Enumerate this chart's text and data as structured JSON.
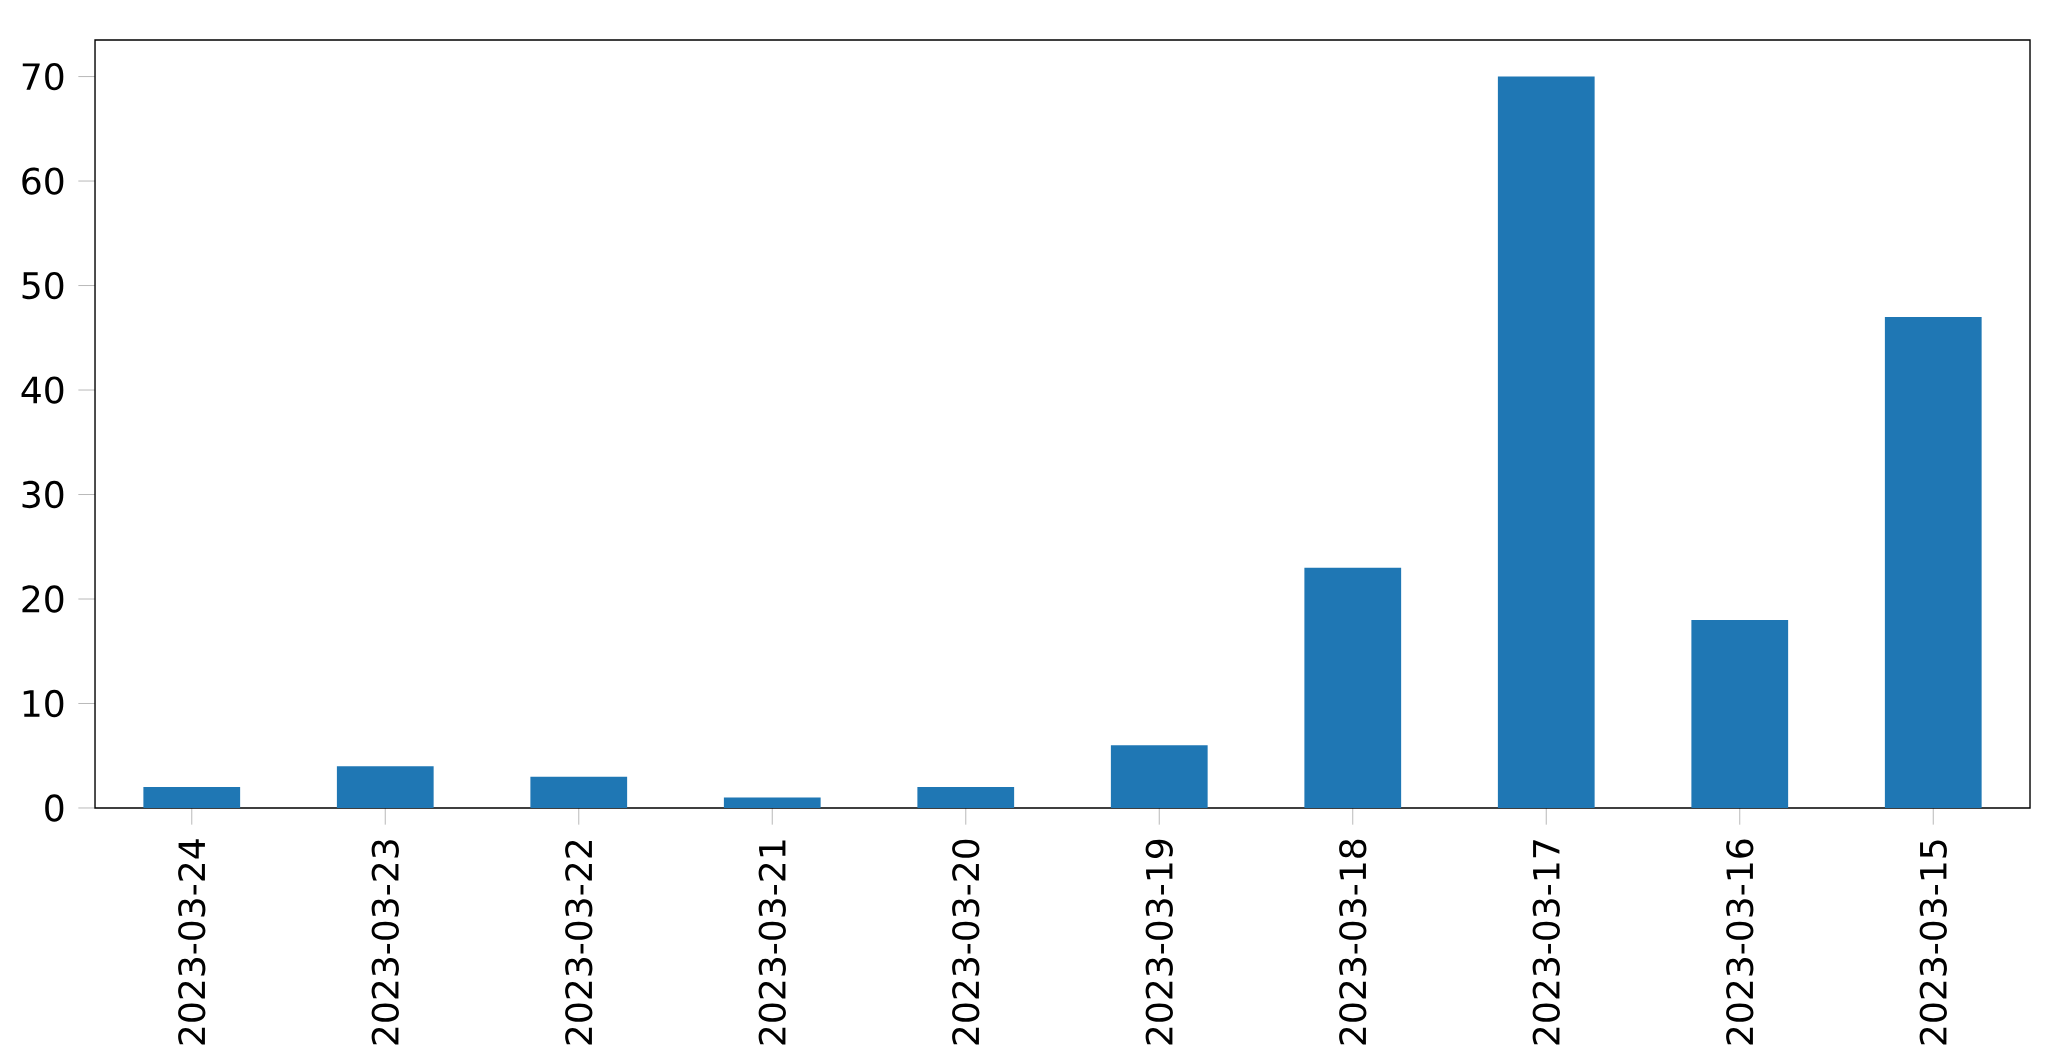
{
  "chart_data": {
    "type": "bar",
    "categories": [
      "2023-03-24",
      "2023-03-23",
      "2023-03-22",
      "2023-03-21",
      "2023-03-20",
      "2023-03-19",
      "2023-03-18",
      "2023-03-17",
      "2023-03-16",
      "2023-03-15"
    ],
    "values": [
      2,
      4,
      3,
      1,
      2,
      6,
      23,
      70,
      18,
      47
    ],
    "color": "#1f77b4",
    "ylim": [
      0,
      73.5
    ],
    "yticks": [
      0,
      10,
      20,
      30,
      40,
      50,
      60,
      70
    ]
  }
}
